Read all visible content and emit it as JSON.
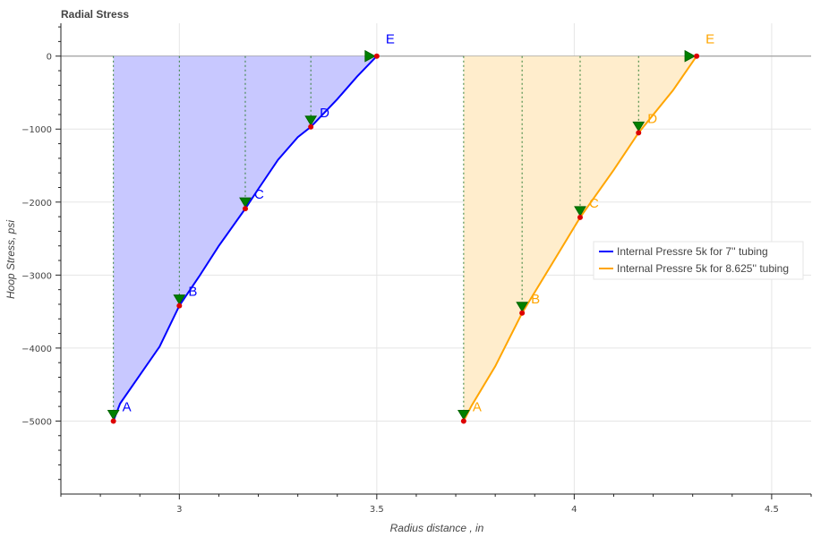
{
  "chart_data": {
    "type": "line",
    "title": "Radial Stress",
    "xlabel": "Radius distance , in",
    "ylabel": "Hoop Stress, psi",
    "xlim": [
      2.7,
      4.6
    ],
    "ylim": [
      -6000,
      450
    ],
    "x_ticks": [
      3,
      3.5,
      4,
      4.5
    ],
    "x_tick_labels": [
      "3",
      "3.5",
      "4",
      "4.5"
    ],
    "y_ticks": [
      0,
      -1000,
      -2000,
      -3000,
      -4000,
      -5000
    ],
    "y_tick_labels": [
      "0",
      "−1000",
      "−2000",
      "−3000",
      "−4000",
      "−5000"
    ],
    "grid": true,
    "legend_position": "right",
    "series": [
      {
        "name": "Internal Pressre 5k for 7'' tubing",
        "color": "#0000ff",
        "fill_color": "#c8c8ff",
        "x": [
          2.833,
          2.85,
          2.9,
          2.95,
          3.0,
          3.05,
          3.1,
          3.167,
          3.2,
          3.25,
          3.3,
          3.333,
          3.4,
          3.45,
          3.5
        ],
        "y": [
          -5000,
          -4760,
          -4370,
          -3980,
          -3420,
          -3020,
          -2600,
          -2090,
          -1820,
          -1420,
          -1110,
          -970,
          -590,
          -280,
          0
        ],
        "points": [
          {
            "label": "A",
            "x": 2.833,
            "y": -5000
          },
          {
            "label": "B",
            "x": 3.0,
            "y": -3420
          },
          {
            "label": "C",
            "x": 3.167,
            "y": -2090
          },
          {
            "label": "D",
            "x": 3.333,
            "y": -970
          },
          {
            "label": "E",
            "x": 3.5,
            "y": 0
          }
        ]
      },
      {
        "name": "Internal Pressre 5k for 8.625'' tubing",
        "color": "#ffa500",
        "fill_color": "#ffedcc",
        "x": [
          3.72,
          3.74,
          3.8,
          3.868,
          3.95,
          4.015,
          4.1,
          4.163,
          4.25,
          4.31
        ],
        "y": [
          -5000,
          -4790,
          -4250,
          -3520,
          -2790,
          -2210,
          -1560,
          -1050,
          -470,
          0
        ],
        "points": [
          {
            "label": "A",
            "x": 3.72,
            "y": -5000
          },
          {
            "label": "B",
            "x": 3.868,
            "y": -3520
          },
          {
            "label": "C",
            "x": 4.015,
            "y": -2210
          },
          {
            "label": "D",
            "x": 4.163,
            "y": -1050
          },
          {
            "label": "E",
            "x": 4.31,
            "y": 0
          }
        ]
      }
    ]
  }
}
